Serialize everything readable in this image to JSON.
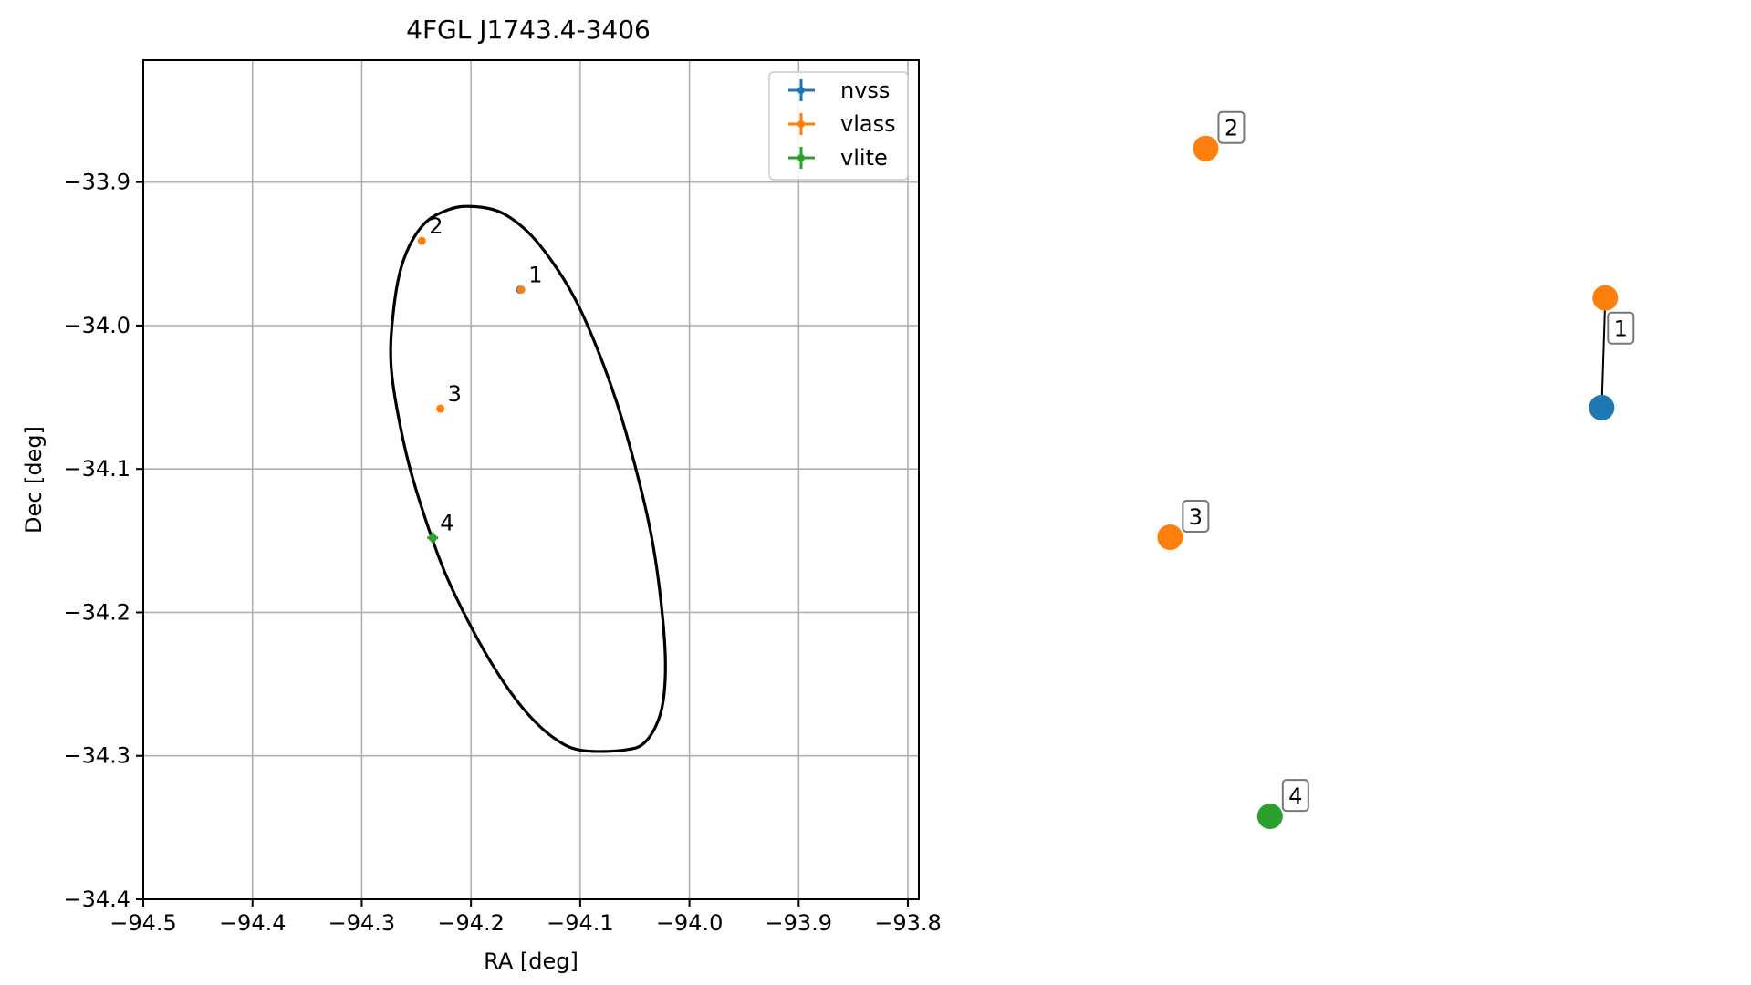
{
  "chart_data": [
    {
      "type": "scatter",
      "title": "4FGL J1743.4-3406",
      "xlabel": "RA [deg]",
      "ylabel": "Dec [deg]",
      "xlim": [
        -94.5,
        -93.79
      ],
      "ylim": [
        -34.4,
        -33.815
      ],
      "xticks": [
        -94.5,
        -94.4,
        -94.3,
        -94.2,
        -94.1,
        -94.0,
        -93.9,
        -93.8
      ],
      "xtick_labels": [
        "−94.5",
        "−94.4",
        "−94.3",
        "−94.2",
        "−94.1",
        "−94.0",
        "−93.9",
        "−93.8"
      ],
      "yticks": [
        -33.9,
        -34.0,
        -34.1,
        -34.2,
        -34.3,
        -34.4
      ],
      "ytick_labels": [
        "−33.9",
        "−34.0",
        "−34.1",
        "−34.2",
        "−34.3",
        "−34.4"
      ],
      "grid": true,
      "legend_position": "top-right",
      "series": [
        {
          "name": "nvss",
          "color": "#1f77b4",
          "points": [
            {
              "id": "1",
              "x": -94.155,
              "y": -33.975
            }
          ]
        },
        {
          "name": "vlass",
          "color": "#ff7f0e",
          "points": [
            {
              "id": "1",
              "x": -94.154,
              "y": -33.975
            },
            {
              "id": "2",
              "x": -94.245,
              "y": -33.941
            },
            {
              "id": "3",
              "x": -94.228,
              "y": -34.058
            }
          ]
        },
        {
          "name": "vlite",
          "color": "#2ca02c",
          "points": [
            {
              "id": "4",
              "x": -94.235,
              "y": -34.148
            }
          ]
        }
      ],
      "ellipse": {
        "color": "#000000",
        "outline": [
          [
            -94.198,
            -33.917
          ],
          [
            -94.173,
            -33.921
          ],
          [
            -94.149,
            -33.934
          ],
          [
            -94.127,
            -33.954
          ],
          [
            -94.105,
            -33.981
          ],
          [
            -94.085,
            -34.015
          ],
          [
            -94.066,
            -34.055
          ],
          [
            -94.049,
            -34.1
          ],
          [
            -94.035,
            -34.146
          ],
          [
            -94.026,
            -34.193
          ],
          [
            -94.022,
            -34.237
          ],
          [
            -94.026,
            -34.269
          ],
          [
            -94.04,
            -34.29
          ],
          [
            -94.06,
            -34.296
          ],
          [
            -94.1,
            -34.296
          ],
          [
            -94.125,
            -34.287
          ],
          [
            -94.15,
            -34.269
          ],
          [
            -94.175,
            -34.243
          ],
          [
            -94.2,
            -34.21
          ],
          [
            -94.225,
            -34.17
          ],
          [
            -94.248,
            -34.12
          ],
          [
            -94.262,
            -34.08
          ],
          [
            -94.273,
            -34.03
          ],
          [
            -94.271,
            -33.99
          ],
          [
            -94.262,
            -33.955
          ],
          [
            -94.244,
            -33.93
          ],
          [
            -94.22,
            -33.919
          ],
          [
            -94.198,
            -33.917
          ]
        ]
      }
    },
    {
      "type": "scatter",
      "series": [
        {
          "name": "nvss",
          "color": "#1f77b4",
          "points": [
            {
              "id": "",
              "x": 1.83,
              "y": 6.33
            }
          ]
        },
        {
          "name": "vlass",
          "color": "#ff7f0e",
          "points": [
            {
              "id": "1",
              "x": 1.84,
              "y": 6.88
            },
            {
              "id": "2",
              "x": 0.72,
              "y": 7.63
            },
            {
              "id": "3",
              "x": 0.62,
              "y": 5.68
            }
          ]
        },
        {
          "name": "vlite",
          "color": "#2ca02c",
          "points": [
            {
              "id": "4",
              "x": 0.9,
              "y": 4.28
            }
          ]
        }
      ],
      "connectors": [
        {
          "from": "vlass-1",
          "to": "nvss"
        }
      ]
    }
  ]
}
